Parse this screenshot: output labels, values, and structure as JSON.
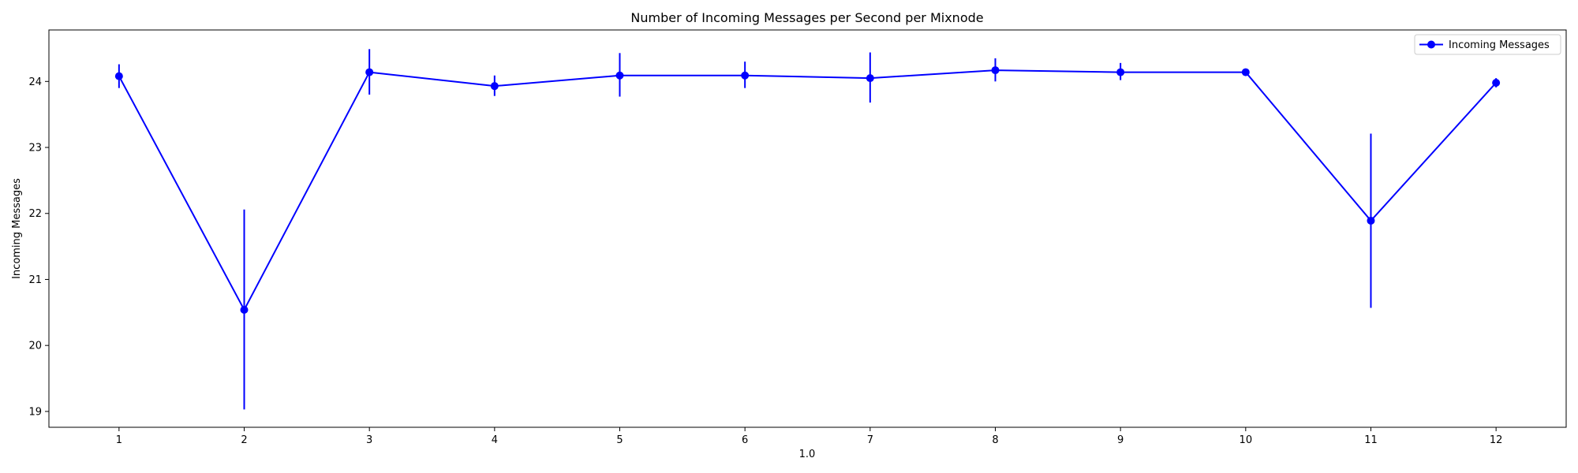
{
  "chart_data": {
    "type": "line",
    "title": "Number of Incoming Messages per Second per Mixnode",
    "xlabel": "1.0",
    "ylabel": "Incoming Messages",
    "x": [
      1,
      2,
      3,
      4,
      5,
      6,
      7,
      8,
      9,
      10,
      11,
      12
    ],
    "xlim": [
      0.44,
      12.56
    ],
    "ylim": [
      18.76,
      24.78
    ],
    "yticks": [
      19,
      20,
      21,
      22,
      23,
      24
    ],
    "grid": false,
    "legend_position": "top-right",
    "series": [
      {
        "name": "Incoming Messages",
        "color": "#0000ff",
        "marker": "circle",
        "values": [
          24.08,
          20.54,
          24.14,
          23.93,
          24.09,
          24.09,
          24.05,
          24.17,
          24.14,
          24.14,
          21.89,
          23.98
        ],
        "error_low": [
          23.9,
          19.03,
          23.8,
          23.78,
          23.77,
          23.9,
          23.68,
          24.0,
          24.02,
          24.11,
          20.57,
          23.91
        ],
        "error_high": [
          24.26,
          22.06,
          24.49,
          24.09,
          24.43,
          24.3,
          24.44,
          24.35,
          24.28,
          24.17,
          23.21,
          24.05
        ]
      }
    ]
  }
}
